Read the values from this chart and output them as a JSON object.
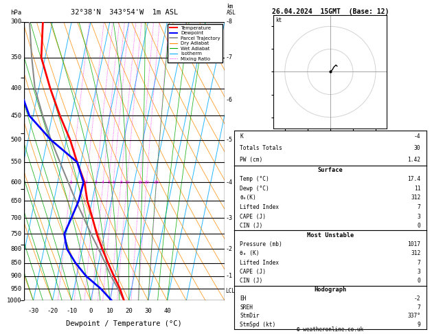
{
  "title_left": "32°38'N  343°54'W  1m ASL",
  "title_right": "26.04.2024  15GMT  (Base: 12)",
  "xlabel": "Dewpoint / Temperature (°C)",
  "ylabel_left": "hPa",
  "pressure_levels": [
    300,
    350,
    400,
    450,
    500,
    550,
    600,
    650,
    700,
    750,
    800,
    850,
    900,
    950,
    1000
  ],
  "pressure_ticks": [
    300,
    350,
    400,
    450,
    500,
    550,
    600,
    650,
    700,
    750,
    800,
    850,
    900,
    950,
    1000
  ],
  "temp_range": [
    -35,
    40
  ],
  "temp_ticks": [
    -30,
    -20,
    -10,
    0,
    10,
    20,
    30,
    40
  ],
  "bg_color": "#ffffff",
  "sounding_color": "#ff0000",
  "dewpoint_color": "#0000ff",
  "parcel_color": "#888888",
  "dry_adiabat_color": "#ff8c00",
  "wet_adiabat_color": "#00aa00",
  "isotherm_color": "#00aaff",
  "mixing_ratio_color": "#ff00ff",
  "temperature_data": {
    "pressure": [
      1000,
      950,
      900,
      850,
      800,
      750,
      700,
      650,
      600,
      550,
      500,
      450,
      400,
      350,
      300
    ],
    "temp": [
      17.4,
      14.0,
      9.5,
      5.0,
      0.5,
      -4.0,
      -8.0,
      -12.5,
      -16.0,
      -22.0,
      -28.0,
      -36.0,
      -44.0,
      -52.0,
      -55.0
    ]
  },
  "dewpoint_data": {
    "pressure": [
      1000,
      950,
      900,
      850,
      800,
      750,
      700,
      650,
      600,
      550,
      500,
      450,
      400,
      350,
      300
    ],
    "temp": [
      11.0,
      4.0,
      -5.0,
      -12.0,
      -18.0,
      -21.0,
      -19.0,
      -17.0,
      -16.5,
      -22.0,
      -38.0,
      -52.0,
      -60.0,
      -62.0,
      -67.0
    ]
  },
  "parcel_data": {
    "pressure": [
      1000,
      950,
      900,
      850,
      800,
      750,
      700,
      650,
      600,
      550,
      500,
      450,
      400,
      350,
      300
    ],
    "temp": [
      17.4,
      13.0,
      8.0,
      3.5,
      -1.5,
      -7.0,
      -12.5,
      -18.5,
      -24.5,
      -31.0,
      -38.0,
      -45.0,
      -52.0,
      -57.0,
      -62.0
    ]
  },
  "lcl_pressure": 960,
  "mixing_ratio_lines": [
    1,
    2,
    3,
    4,
    5,
    6,
    8,
    10,
    16,
    20,
    28
  ],
  "km_ticks": [
    1,
    2,
    3,
    4,
    5,
    6,
    7,
    8
  ],
  "km_pressures": [
    900,
    800,
    700,
    600,
    500,
    420,
    350,
    300
  ],
  "stats": {
    "K": -4,
    "Totals Totals": 30,
    "PW (cm)": 1.42,
    "Surface": {
      "Temp (oC)": 17.4,
      "Dewp (oC)": 11,
      "theta_e(K)": 312,
      "Lifted Index": 7,
      "CAPE (J)": 3,
      "CIN (J)": 0
    },
    "Most Unstable": {
      "Pressure (mb)": 1017,
      "theta_e (K)": 312,
      "Lifted Index": 7,
      "CAPE (J)": 3,
      "CIN (J)": 0
    },
    "Hodograph": {
      "EH": -2,
      "SREH": 7,
      "StmDir": "337°",
      "StmSpd (kt)": 9
    }
  }
}
